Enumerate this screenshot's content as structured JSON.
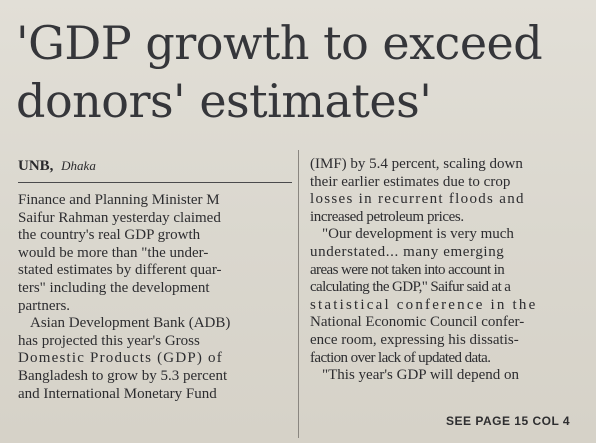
{
  "headline": {
    "line1": "'GDP growth to exceed",
    "line2": "donors' estimates'"
  },
  "byline": {
    "agency": "UNB",
    "separator": ",",
    "place": "Dhaka"
  },
  "left_column": [
    "Finance and Planning Minister M",
    "Saifur Rahman yesterday claimed",
    "the country's real GDP growth",
    "would be more than \"the under-",
    "stated estimates by different quar-",
    "ters\" including the development",
    "partners.",
    "Asian Development Bank (ADB)",
    "has projected this year's Gross",
    "Domestic Products (GDP) of",
    "Bangladesh to grow by 5.3 percent",
    "and International Monetary Fund"
  ],
  "right_column": [
    "(IMF) by 5.4 percent, scaling down",
    "their earlier estimates due to crop",
    "losses in recurrent floods and",
    "increased petroleum prices.",
    "\"Our development is very much",
    "understated... many emerging",
    "areas were not taken into account in",
    "calculating the GDP,\" Saifur said at a",
    "statistical conference in the",
    "National Economic Council confer-",
    "ence room, expressing his dissatis-",
    "faction over lack of updated data.",
    "\"This year's GDP will depend on"
  ],
  "continuation": "SEE PAGE 15 COL 4"
}
